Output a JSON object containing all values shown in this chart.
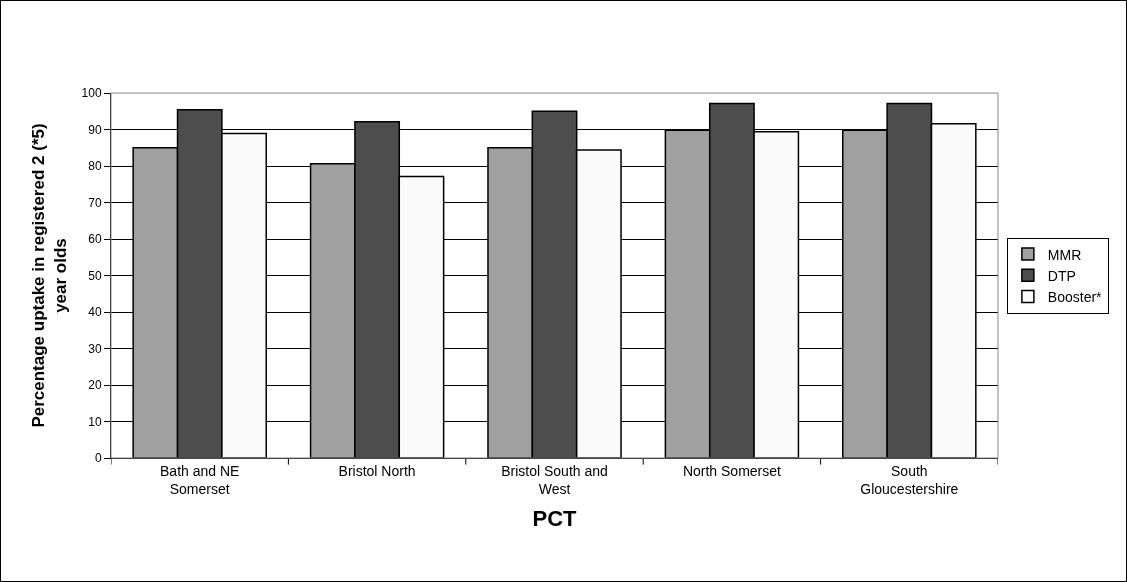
{
  "chart_data": {
    "type": "bar",
    "xlabel": "PCT",
    "ylabel": "Percentage uptake in registered 2 (*5) year olds",
    "categories": [
      "Bath and NE Somerset",
      "Bristol North",
      "Bristol South and West",
      "North Somerset",
      "South Gloucestershire"
    ],
    "series": [
      {
        "name": "MMR",
        "color": "#a0a0a0",
        "values": [
          85,
          80.6,
          85,
          89.8,
          89.8
        ]
      },
      {
        "name": "DTP",
        "color": "#4d4d4d",
        "values": [
          95.4,
          92.1,
          95,
          97.1,
          97.1
        ]
      },
      {
        "name": "Booster*",
        "color": "#fafafa",
        "values": [
          88.9,
          77.1,
          84.4,
          89.4,
          91.6
        ]
      }
    ],
    "ylim": [
      0,
      100
    ],
    "yticks": [
      0,
      10,
      20,
      30,
      40,
      50,
      60,
      70,
      80,
      90,
      100
    ],
    "grid": "y",
    "legend": "right"
  }
}
